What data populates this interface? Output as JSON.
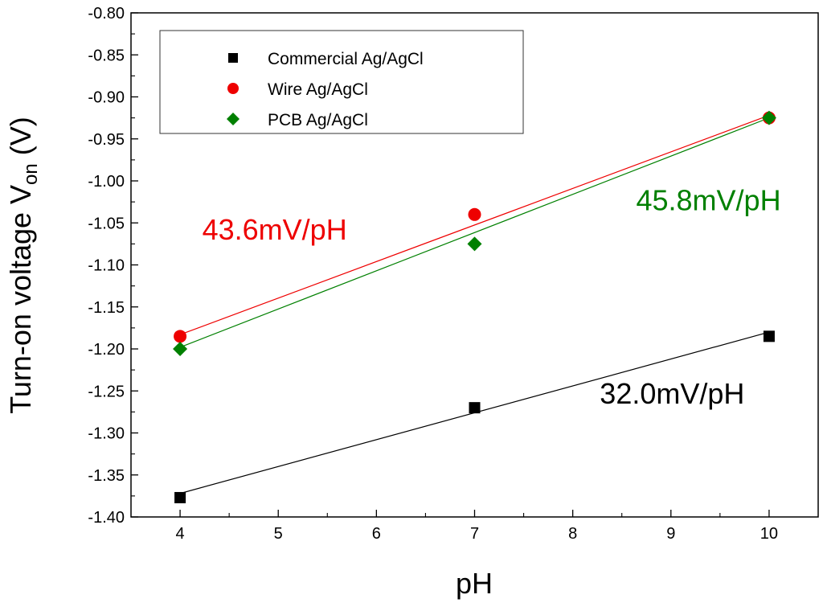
{
  "chart_data": {
    "type": "scatter",
    "title": "",
    "xlabel": "pH",
    "ylabel": {
      "main": "Turn-on voltage V",
      "subscript": "on",
      "unit": "(V)"
    },
    "xlim": [
      3.5,
      10.5
    ],
    "ylim": [
      -1.4,
      -0.8
    ],
    "xticks": [
      4,
      5,
      6,
      7,
      8,
      9,
      10
    ],
    "xtick_labels": [
      "4",
      "5",
      "6",
      "7",
      "8",
      "9",
      "10"
    ],
    "yticks": [
      -0.8,
      -0.85,
      -0.9,
      -0.95,
      -1.0,
      -1.05,
      -1.1,
      -1.15,
      -1.2,
      -1.25,
      -1.3,
      -1.35,
      -1.4
    ],
    "ytick_labels": [
      "-0.80",
      "-0.85",
      "-0.90",
      "-0.95",
      "-1.00",
      "-1.05",
      "-1.10",
      "-1.15",
      "-1.20",
      "-1.25",
      "-1.30",
      "-1.35",
      "-1.40"
    ],
    "grid": false,
    "legend_position": "top-left",
    "series": [
      {
        "name": "Commercial Ag/AgCl",
        "color": "#000000",
        "marker": "square",
        "x": [
          4,
          7,
          10
        ],
        "y": [
          -1.377,
          -1.27,
          -1.185
        ],
        "fit_line": [
          [
            4,
            -1.372
          ],
          [
            10,
            -1.18
          ]
        ],
        "slope_label": "32.0mV/pH",
        "slope_label_at": [
          9.75,
          -1.265
        ]
      },
      {
        "name": "Wire Ag/AgCl",
        "color": "#ee0000",
        "marker": "circle",
        "x": [
          4,
          7,
          10
        ],
        "y": [
          -1.185,
          -1.04,
          -0.925
        ],
        "fit_line": [
          [
            4,
            -1.183
          ],
          [
            10,
            -0.922
          ]
        ],
        "slope_label": "43.6mV/pH",
        "slope_label_at": [
          5.7,
          -1.07
        ]
      },
      {
        "name": "PCB Ag/AgCl",
        "color": "#008000",
        "marker": "diamond",
        "x": [
          4,
          7,
          10
        ],
        "y": [
          -1.2,
          -1.075,
          -0.925
        ],
        "fit_line": [
          [
            4,
            -1.198
          ],
          [
            10,
            -0.925
          ]
        ],
        "slope_label": "45.8mV/pH",
        "slope_label_at": [
          10.12,
          -1.035
        ]
      }
    ]
  }
}
